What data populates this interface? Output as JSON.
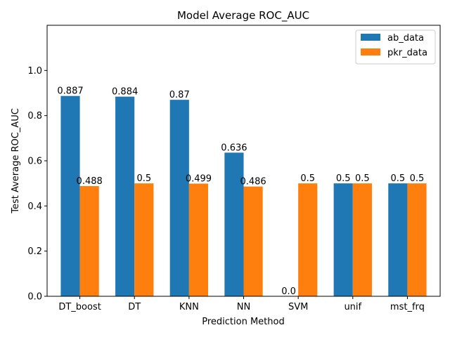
{
  "chart_data": {
    "type": "bar",
    "title": "Model Average ROC_AUC",
    "xlabel": "Prediction Method",
    "ylabel": "Test Average ROC_AUC",
    "categories": [
      "DT_boost",
      "DT",
      "KNN",
      "NN",
      "SVM",
      "unif",
      "mst_frq"
    ],
    "series": [
      {
        "name": "ab_data",
        "color": "#1f77b4",
        "values": [
          0.887,
          0.884,
          0.87,
          0.636,
          0.0,
          0.5,
          0.5
        ],
        "labels": [
          "0.887",
          "0.884",
          "0.87",
          "0.636",
          "0.0",
          "0.5",
          "0.5"
        ]
      },
      {
        "name": "pkr_data",
        "color": "#ff7f0e",
        "values": [
          0.488,
          0.5,
          0.499,
          0.486,
          0.5,
          0.5,
          0.5
        ],
        "labels": [
          "0.488",
          "0.5",
          "0.499",
          "0.486",
          "0.5",
          "0.5",
          "0.5"
        ]
      }
    ],
    "ylim": [
      0,
      1.2
    ],
    "yticks": [
      0.0,
      0.2,
      0.4,
      0.6,
      0.8,
      1.0
    ],
    "ytick_labels": [
      "0.0",
      "0.2",
      "0.4",
      "0.6",
      "0.8",
      "1.0"
    ],
    "grid": false,
    "legend_position": "top-right"
  }
}
